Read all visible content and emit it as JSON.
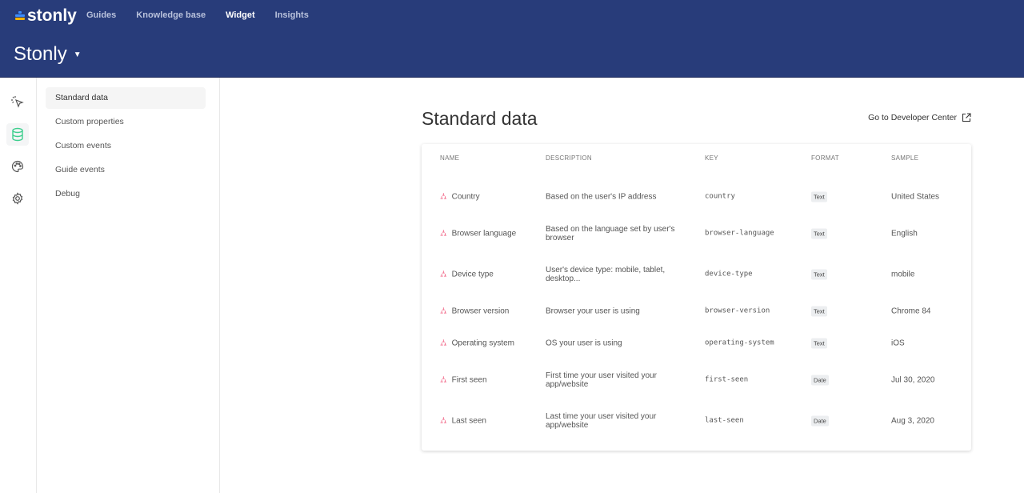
{
  "header": {
    "logo": "stonly",
    "nav": [
      "Guides",
      "Knowledge base",
      "Widget",
      "Insights"
    ],
    "active_nav": "Widget",
    "workspace": "Stonly"
  },
  "rail": {
    "icons": [
      "pointer-click-icon",
      "database-icon",
      "palette-icon",
      "gear-icon"
    ],
    "active": "database-icon",
    "accent": "#3ecf8e"
  },
  "subnav": {
    "items": [
      "Standard data",
      "Custom properties",
      "Custom events",
      "Guide events",
      "Debug"
    ],
    "active": "Standard data"
  },
  "main": {
    "title": "Standard data",
    "dev_link": "Go to Developer Center",
    "columns": [
      "NAME",
      "DESCRIPTION",
      "KEY",
      "FORMAT",
      "SAMPLE"
    ],
    "rows": [
      {
        "name": "Country",
        "description": "Based on the user's IP address",
        "key": "country",
        "format": "Text",
        "sample": "United States"
      },
      {
        "name": "Browser language",
        "description": "Based on the language set by user's browser",
        "key": "browser-language",
        "format": "Text",
        "sample": "English"
      },
      {
        "name": "Device type",
        "description": "User's device type: mobile, tablet, desktop...",
        "key": "device-type",
        "format": "Text",
        "sample": "mobile"
      },
      {
        "name": "Browser version",
        "description": "Browser your user is using",
        "key": "browser-version",
        "format": "Text",
        "sample": "Chrome 84"
      },
      {
        "name": "Operating system",
        "description": "OS your user is using",
        "key": "operating-system",
        "format": "Text",
        "sample": "iOS"
      },
      {
        "name": "First seen",
        "description": "First time your user visited your app/website",
        "key": "first-seen",
        "format": "Date",
        "sample": "Jul 30, 2020"
      },
      {
        "name": "Last seen",
        "description": "Last time your user visited your app/website",
        "key": "last-seen",
        "format": "Date",
        "sample": "Aug 3, 2020"
      }
    ]
  }
}
